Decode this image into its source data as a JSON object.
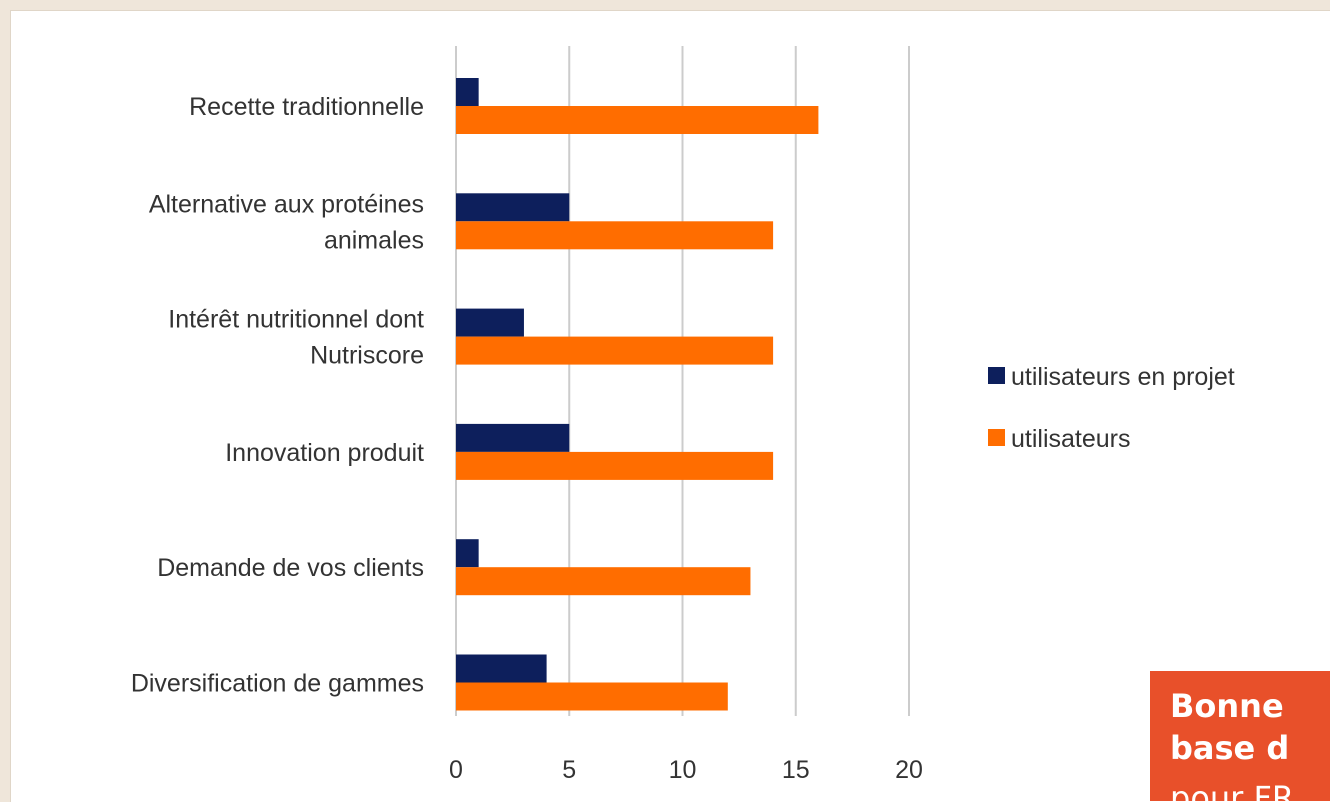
{
  "chart_data": {
    "type": "bar",
    "orientation": "horizontal",
    "categories": [
      [
        "Recette traditionnelle"
      ],
      [
        "Alternative aux protéines",
        "animales"
      ],
      [
        "Intérêt nutritionnel dont",
        "Nutriscore"
      ],
      [
        "Innovation produit"
      ],
      [
        "Demande de vos clients"
      ],
      [
        "Diversification de gammes"
      ]
    ],
    "series": [
      {
        "name": "utilisateurs en projet",
        "color": "#0d1f5c",
        "values": [
          1,
          5,
          3,
          5,
          1,
          4
        ]
      },
      {
        "name": "utilisateurs",
        "color": "#ff6d00",
        "values": [
          16,
          14,
          14,
          14,
          13,
          12
        ]
      }
    ],
    "x_ticks": [
      "0",
      "5",
      "10",
      "15",
      "20"
    ],
    "xlim": [
      0,
      20
    ],
    "grid": true,
    "legend_position": "right"
  },
  "callout": {
    "line1": "Bonne",
    "line2": "base d",
    "line3": "pour FR"
  }
}
